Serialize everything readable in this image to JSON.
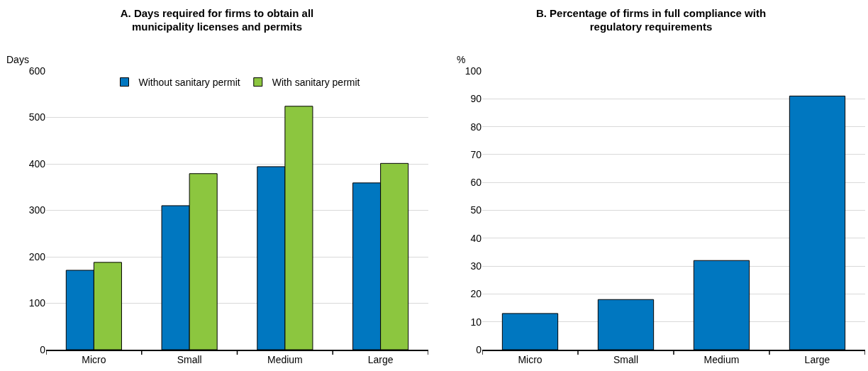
{
  "chart_data": [
    {
      "type": "bar",
      "title": "A. Days required for firms to obtain all municipality licenses and permits",
      "ylabel": "Days",
      "categories": [
        "Micro",
        "Small",
        "Medium",
        "Large"
      ],
      "series": [
        {
          "name": "Without sanitary permit",
          "color": "#0077c0",
          "values": [
            171,
            310,
            394,
            359
          ]
        },
        {
          "name": "With sanitary permit",
          "color": "#8cc63f",
          "values": [
            188,
            379,
            524,
            401
          ]
        }
      ],
      "ylim": [
        0,
        600
      ],
      "yticks": [
        0,
        100,
        200,
        300,
        400,
        500,
        600
      ],
      "grid": "y",
      "legend": "top"
    },
    {
      "type": "bar",
      "title": "B. Percentage of firms in full compliance with regulatory requirements",
      "ylabel": "%",
      "categories": [
        "Micro",
        "Small",
        "Medium",
        "Large"
      ],
      "series": [
        {
          "color": "#0077c0",
          "values": [
            13,
            18,
            32,
            91
          ]
        }
      ],
      "ylim": [
        0,
        100
      ],
      "yticks": [
        0,
        10,
        20,
        30,
        40,
        50,
        60,
        70,
        80,
        90,
        100
      ],
      "grid": "y"
    }
  ]
}
